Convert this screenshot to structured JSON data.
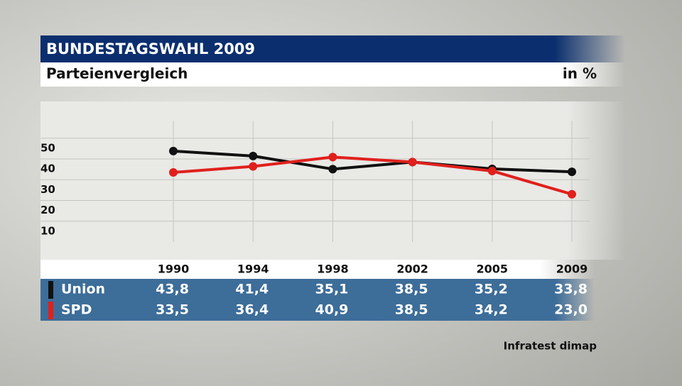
{
  "chart_data": {
    "type": "line",
    "title": "BUNDESTAGSWAHL 2009",
    "subtitle": "Parteienvergleich",
    "unit_label": "in %",
    "source": "Infratest dimap",
    "categories": [
      "1990",
      "1994",
      "1998",
      "2002",
      "2005",
      "2009"
    ],
    "series": [
      {
        "name": "Union",
        "color": "#111111",
        "values": [
          43.8,
          41.4,
          35.1,
          38.5,
          35.2,
          33.8
        ],
        "value_labels": [
          "43,8",
          "41,4",
          "35,1",
          "38,5",
          "35,2",
          "33,8"
        ]
      },
      {
        "name": "SPD",
        "color": "#e0201c",
        "values": [
          33.5,
          36.4,
          40.9,
          38.5,
          34.2,
          23.0
        ],
        "value_labels": [
          "33,5",
          "36,4",
          "40,9",
          "38,5",
          "34,2",
          "23,0"
        ]
      }
    ],
    "ylim": [
      0,
      60
    ],
    "yticks": [
      10,
      20,
      30,
      40,
      50
    ],
    "grid": true
  }
}
